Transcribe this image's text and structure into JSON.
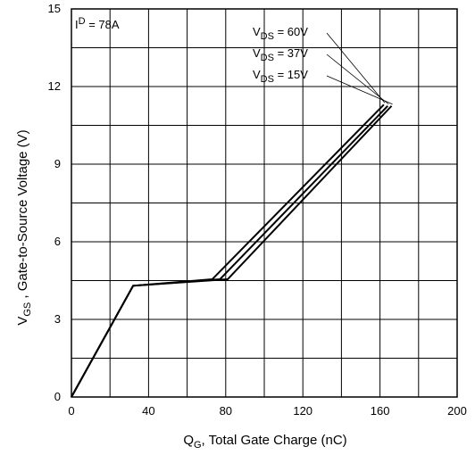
{
  "chart_data": {
    "type": "line",
    "title": "",
    "xlabel": {
      "main": "Q",
      "sub": "G",
      "rest": ", Total Gate Charge (nC)"
    },
    "ylabel": {
      "main": "V",
      "sub": "GS",
      "rest": " , Gate-to-Source Voltage (V)"
    },
    "xlim": [
      0,
      200
    ],
    "ylim": [
      0,
      15
    ],
    "x_ticks": [
      0,
      40,
      80,
      120,
      160,
      200
    ],
    "y_ticks": [
      0,
      3,
      6,
      9,
      12,
      15
    ],
    "grid": true,
    "condition": {
      "label": "I",
      "sup": "D",
      "rest": " =  78A"
    },
    "series": [
      {
        "label": {
          "main": "V",
          "sub": "DS",
          "rest": "  =  60V"
        },
        "points": [
          [
            0,
            0
          ],
          [
            32,
            4.3
          ],
          [
            73,
            4.55
          ],
          [
            162,
            11.3
          ]
        ]
      },
      {
        "label": {
          "main": "V",
          "sub": "DS",
          "rest": "  =  37V"
        },
        "points": [
          [
            0,
            0
          ],
          [
            32,
            4.3
          ],
          [
            77,
            4.55
          ],
          [
            164,
            11.25
          ]
        ]
      },
      {
        "label": {
          "main": "V",
          "sub": "DS",
          "rest": "  =  15V"
        },
        "points": [
          [
            0,
            0
          ],
          [
            32,
            4.3
          ],
          [
            81,
            4.55
          ],
          [
            166,
            11.25
          ]
        ]
      }
    ]
  }
}
